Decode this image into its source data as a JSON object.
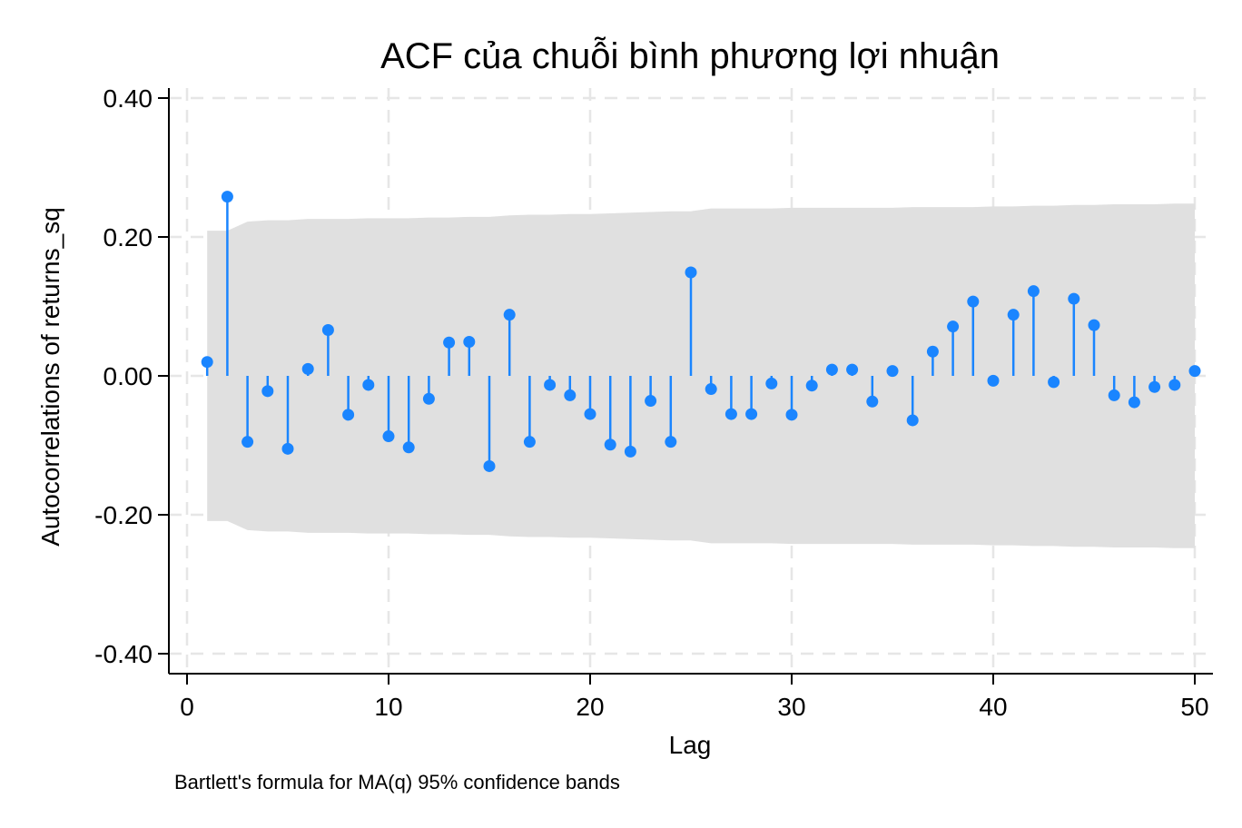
{
  "chart_data": {
    "type": "stem",
    "title": "ACF của chuỗi bình phương lợi nhuận",
    "xlabel": "Lag",
    "ylabel": "Autocorrelations of returns_sq",
    "note": "Bartlett's formula for MA(q) 95% confidence bands",
    "xlim": [
      0,
      50
    ],
    "ylim": [
      -0.4,
      0.4
    ],
    "x_ticks": [
      0,
      10,
      20,
      30,
      40,
      50
    ],
    "x_tick_labels": [
      "0",
      "10",
      "20",
      "30",
      "40",
      "50"
    ],
    "y_ticks": [
      -0.4,
      -0.2,
      0.0,
      0.2,
      0.4
    ],
    "y_tick_labels": [
      "-0.40",
      "-0.20",
      "0.00",
      "0.20",
      "0.40"
    ],
    "grid": true,
    "colors": {
      "series": "#1a85ff",
      "band": "#e0e0e0",
      "grid": "#e6e6e6"
    },
    "series": [
      {
        "lags": [
          1,
          2,
          3,
          4,
          5,
          6,
          7,
          8,
          9,
          10,
          11,
          12,
          13,
          14,
          15,
          16,
          17,
          18,
          19,
          20,
          21,
          22,
          23,
          24,
          25,
          26,
          27,
          28,
          29,
          30,
          31,
          32,
          33,
          34,
          35,
          36,
          37,
          38,
          39,
          40,
          41,
          42,
          43,
          44,
          45,
          46,
          47,
          48,
          49,
          50
        ],
        "values": [
          0.02,
          0.258,
          -0.095,
          -0.022,
          -0.105,
          0.01,
          0.066,
          -0.056,
          -0.013,
          -0.087,
          -0.103,
          -0.033,
          0.048,
          0.049,
          -0.13,
          0.088,
          -0.095,
          -0.013,
          -0.028,
          -0.055,
          -0.099,
          -0.109,
          -0.036,
          -0.095,
          0.149,
          -0.019,
          -0.055,
          -0.055,
          -0.011,
          -0.056,
          -0.014,
          0.009,
          0.009,
          -0.037,
          0.007,
          -0.064,
          0.035,
          0.071,
          0.107,
          -0.007,
          0.088,
          0.122,
          -0.009,
          0.111,
          0.073,
          -0.028,
          -0.038,
          -0.016,
          -0.013,
          0.007
        ]
      }
    ],
    "confidence_band": {
      "lags": [
        1,
        2,
        3,
        4,
        5,
        6,
        7,
        8,
        9,
        10,
        11,
        12,
        13,
        14,
        15,
        16,
        17,
        18,
        19,
        20,
        21,
        22,
        23,
        24,
        25,
        26,
        27,
        28,
        29,
        30,
        31,
        32,
        33,
        34,
        35,
        36,
        37,
        38,
        39,
        40,
        41,
        42,
        43,
        44,
        45,
        46,
        47,
        48,
        49,
        50
      ],
      "upper": [
        0.209,
        0.209,
        0.222,
        0.224,
        0.224,
        0.226,
        0.226,
        0.226,
        0.227,
        0.227,
        0.227,
        0.228,
        0.228,
        0.229,
        0.229,
        0.231,
        0.232,
        0.232,
        0.233,
        0.233,
        0.234,
        0.235,
        0.236,
        0.237,
        0.237,
        0.241,
        0.241,
        0.241,
        0.241,
        0.242,
        0.242,
        0.242,
        0.242,
        0.242,
        0.242,
        0.243,
        0.243,
        0.243,
        0.243,
        0.244,
        0.244,
        0.245,
        0.245,
        0.246,
        0.246,
        0.247,
        0.247,
        0.247,
        0.248,
        0.248
      ]
    }
  }
}
